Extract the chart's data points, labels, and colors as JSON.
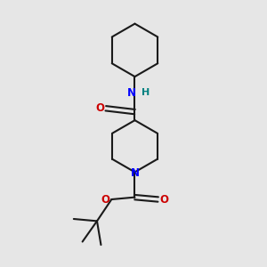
{
  "bg_color": "#e6e6e6",
  "bond_color": "#1a1a1a",
  "N_color": "#0000ff",
  "O_color": "#cc0000",
  "H_color": "#008080",
  "line_width": 1.5,
  "fig_size": [
    3.0,
    3.0
  ],
  "dpi": 100,
  "xlim": [
    0,
    10
  ],
  "ylim": [
    0,
    10
  ]
}
